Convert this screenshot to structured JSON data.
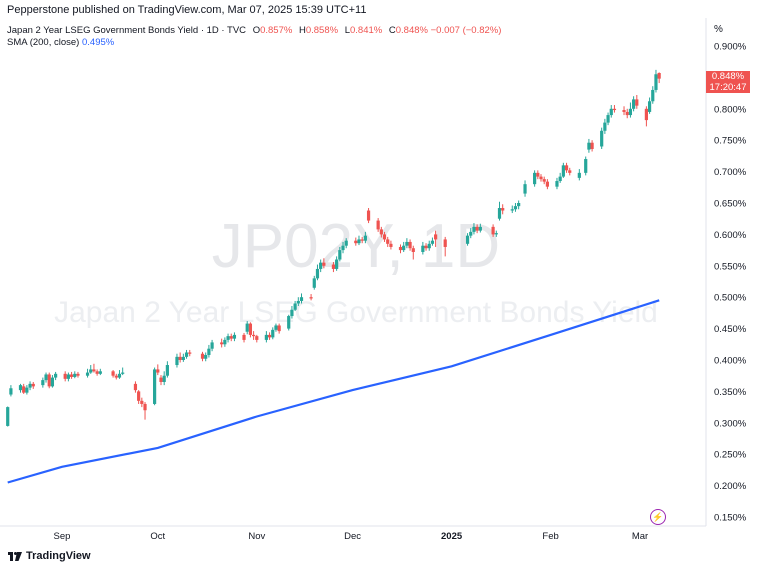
{
  "header": {
    "published": "Pepperstone published on TradingView.com, Mar 07, 2025 15:39 UTC+11",
    "symbol_line": "Japan 2 Year LSEG Government Bonds Yield · 1D · TVC",
    "open_label": "O",
    "open_value": "0.857%",
    "high_label": "H",
    "high_value": "0.858%",
    "low_label": "L",
    "low_value": "0.841%",
    "close_label": "C",
    "close_value": "0.848%",
    "change": "−0.007 (−0.82%)",
    "sma_label": "SMA (200, close)",
    "sma_value": "0.495%"
  },
  "watermark": {
    "ticker": "JP02Y, 1D",
    "name": "Japan 2 Year LSEG Government Bonds Yield"
  },
  "price_badge": {
    "price": "0.848%",
    "countdown": "17:20:47"
  },
  "footer": {
    "brand": "TradingView"
  },
  "colors": {
    "up": "#26a69a",
    "down": "#ef5350",
    "sma": "#2962ff",
    "flash": "#9c27b0"
  },
  "icons": [
    "tradingview-logo-icon",
    "flash-icon"
  ],
  "chart_data": {
    "type": "candlestick",
    "y_unit": "%",
    "y_ticks": [
      "0.900%",
      "0.850%",
      "0.800%",
      "0.750%",
      "0.700%",
      "0.650%",
      "0.600%",
      "0.550%",
      "0.500%",
      "0.450%",
      "0.400%",
      "0.350%",
      "0.300%",
      "0.250%",
      "0.200%",
      "0.150%"
    ],
    "x_ticks": [
      {
        "label": "Sep",
        "date": "2024-09-01",
        "bold": false
      },
      {
        "label": "Oct",
        "date": "2024-10-01",
        "bold": false
      },
      {
        "label": "Nov",
        "date": "2024-11-01",
        "bold": false
      },
      {
        "label": "Dec",
        "date": "2024-12-01",
        "bold": false
      },
      {
        "label": "2025",
        "date": "2025-01-01",
        "bold": true
      },
      {
        "label": "Feb",
        "date": "2025-02-01",
        "bold": false
      },
      {
        "label": "Mar",
        "date": "2025-03-01",
        "bold": false
      }
    ],
    "ylim": [
      0.13,
      0.93
    ],
    "x_range": [
      "2024-08-15",
      "2025-03-20"
    ],
    "candles": [
      {
        "x": "2024-08-15",
        "o": 0.295,
        "c": 0.325,
        "h": 0.326,
        "l": 0.294
      },
      {
        "x": "2024-08-16",
        "o": 0.345,
        "c": 0.355,
        "h": 0.36,
        "l": 0.342
      },
      {
        "x": "2024-08-19",
        "o": 0.352,
        "c": 0.36,
        "h": 0.362,
        "l": 0.348
      },
      {
        "x": "2024-08-20",
        "o": 0.358,
        "c": 0.348,
        "h": 0.362,
        "l": 0.346
      },
      {
        "x": "2024-08-21",
        "o": 0.348,
        "c": 0.356,
        "h": 0.36,
        "l": 0.345
      },
      {
        "x": "2024-08-22",
        "o": 0.356,
        "c": 0.362,
        "h": 0.366,
        "l": 0.352
      },
      {
        "x": "2024-08-23",
        "o": 0.362,
        "c": 0.358,
        "h": 0.365,
        "l": 0.354
      },
      {
        "x": "2024-08-26",
        "o": 0.36,
        "c": 0.368,
        "h": 0.372,
        "l": 0.356
      },
      {
        "x": "2024-08-27",
        "o": 0.368,
        "c": 0.377,
        "h": 0.38,
        "l": 0.364
      },
      {
        "x": "2024-08-28",
        "o": 0.377,
        "c": 0.358,
        "h": 0.38,
        "l": 0.355
      },
      {
        "x": "2024-08-29",
        "o": 0.358,
        "c": 0.372,
        "h": 0.376,
        "l": 0.356
      },
      {
        "x": "2024-08-30",
        "o": 0.372,
        "c": 0.378,
        "h": 0.381,
        "l": 0.368
      },
      {
        "x": "2024-09-02",
        "o": 0.378,
        "c": 0.37,
        "h": 0.382,
        "l": 0.366
      },
      {
        "x": "2024-09-03",
        "o": 0.37,
        "c": 0.377,
        "h": 0.38,
        "l": 0.366
      },
      {
        "x": "2024-09-04",
        "o": 0.377,
        "c": 0.373,
        "h": 0.381,
        "l": 0.37
      },
      {
        "x": "2024-09-05",
        "o": 0.373,
        "c": 0.378,
        "h": 0.382,
        "l": 0.371
      },
      {
        "x": "2024-09-06",
        "o": 0.378,
        "c": 0.375,
        "h": 0.381,
        "l": 0.372
      },
      {
        "x": "2024-09-09",
        "o": 0.375,
        "c": 0.38,
        "h": 0.386,
        "l": 0.372
      },
      {
        "x": "2024-09-10",
        "o": 0.38,
        "c": 0.385,
        "h": 0.392,
        "l": 0.378
      },
      {
        "x": "2024-09-11",
        "o": 0.385,
        "c": 0.382,
        "h": 0.394,
        "l": 0.38
      },
      {
        "x": "2024-09-12",
        "o": 0.382,
        "c": 0.378,
        "h": 0.385,
        "l": 0.375
      },
      {
        "x": "2024-09-13",
        "o": 0.378,
        "c": 0.382,
        "h": 0.386,
        "l": 0.376
      },
      {
        "x": "2024-09-17",
        "o": 0.382,
        "c": 0.375,
        "h": 0.384,
        "l": 0.372
      },
      {
        "x": "2024-09-18",
        "o": 0.375,
        "c": 0.372,
        "h": 0.378,
        "l": 0.369
      },
      {
        "x": "2024-09-19",
        "o": 0.372,
        "c": 0.378,
        "h": 0.384,
        "l": 0.37
      },
      {
        "x": "2024-09-20",
        "o": 0.378,
        "c": 0.38,
        "h": 0.388,
        "l": 0.376
      },
      {
        "x": "2024-09-24",
        "o": 0.362,
        "c": 0.352,
        "h": 0.366,
        "l": 0.348
      },
      {
        "x": "2024-09-25",
        "o": 0.35,
        "c": 0.335,
        "h": 0.352,
        "l": 0.33
      },
      {
        "x": "2024-09-26",
        "o": 0.335,
        "c": 0.33,
        "h": 0.34,
        "l": 0.325
      },
      {
        "x": "2024-09-27",
        "o": 0.33,
        "c": 0.32,
        "h": 0.333,
        "l": 0.305
      },
      {
        "x": "2024-09-30",
        "o": 0.33,
        "c": 0.385,
        "h": 0.388,
        "l": 0.328
      },
      {
        "x": "2024-10-01",
        "o": 0.385,
        "c": 0.38,
        "h": 0.393,
        "l": 0.376
      },
      {
        "x": "2024-10-02",
        "o": 0.372,
        "c": 0.365,
        "h": 0.376,
        "l": 0.36
      },
      {
        "x": "2024-10-03",
        "o": 0.365,
        "c": 0.375,
        "h": 0.382,
        "l": 0.36
      },
      {
        "x": "2024-10-04",
        "o": 0.375,
        "c": 0.392,
        "h": 0.398,
        "l": 0.372
      },
      {
        "x": "2024-10-07",
        "o": 0.392,
        "c": 0.405,
        "h": 0.41,
        "l": 0.388
      },
      {
        "x": "2024-10-08",
        "o": 0.405,
        "c": 0.4,
        "h": 0.412,
        "l": 0.396
      },
      {
        "x": "2024-10-09",
        "o": 0.4,
        "c": 0.405,
        "h": 0.41,
        "l": 0.397
      },
      {
        "x": "2024-10-10",
        "o": 0.405,
        "c": 0.412,
        "h": 0.416,
        "l": 0.402
      },
      {
        "x": "2024-10-11",
        "o": 0.412,
        "c": 0.41,
        "h": 0.416,
        "l": 0.406
      },
      {
        "x": "2024-10-15",
        "o": 0.41,
        "c": 0.402,
        "h": 0.413,
        "l": 0.398
      },
      {
        "x": "2024-10-16",
        "o": 0.402,
        "c": 0.408,
        "h": 0.412,
        "l": 0.398
      },
      {
        "x": "2024-10-17",
        "o": 0.408,
        "c": 0.418,
        "h": 0.424,
        "l": 0.404
      },
      {
        "x": "2024-10-18",
        "o": 0.418,
        "c": 0.428,
        "h": 0.432,
        "l": 0.414
      },
      {
        "x": "2024-10-21",
        "o": 0.428,
        "c": 0.425,
        "h": 0.434,
        "l": 0.42
      },
      {
        "x": "2024-10-22",
        "o": 0.425,
        "c": 0.432,
        "h": 0.436,
        "l": 0.421
      },
      {
        "x": "2024-10-23",
        "o": 0.432,
        "c": 0.438,
        "h": 0.442,
        "l": 0.428
      },
      {
        "x": "2024-10-24",
        "o": 0.438,
        "c": 0.434,
        "h": 0.442,
        "l": 0.43
      },
      {
        "x": "2024-10-25",
        "o": 0.434,
        "c": 0.44,
        "h": 0.444,
        "l": 0.43
      },
      {
        "x": "2024-10-28",
        "o": 0.44,
        "c": 0.432,
        "h": 0.443,
        "l": 0.428
      },
      {
        "x": "2024-10-29",
        "o": 0.445,
        "c": 0.458,
        "h": 0.462,
        "l": 0.441
      },
      {
        "x": "2024-10-30",
        "o": 0.458,
        "c": 0.44,
        "h": 0.46,
        "l": 0.436
      },
      {
        "x": "2024-10-31",
        "o": 0.44,
        "c": 0.438,
        "h": 0.446,
        "l": 0.432
      },
      {
        "x": "2024-11-01",
        "o": 0.438,
        "c": 0.432,
        "h": 0.44,
        "l": 0.428
      },
      {
        "x": "2024-11-04",
        "o": 0.432,
        "c": 0.44,
        "h": 0.446,
        "l": 0.428
      },
      {
        "x": "2024-11-05",
        "o": 0.44,
        "c": 0.436,
        "h": 0.444,
        "l": 0.432
      },
      {
        "x": "2024-11-06",
        "o": 0.436,
        "c": 0.448,
        "h": 0.452,
        "l": 0.433
      },
      {
        "x": "2024-11-07",
        "o": 0.448,
        "c": 0.455,
        "h": 0.458,
        "l": 0.445
      },
      {
        "x": "2024-11-08",
        "o": 0.455,
        "c": 0.446,
        "h": 0.458,
        "l": 0.442
      },
      {
        "x": "2024-11-11",
        "o": 0.45,
        "c": 0.47,
        "h": 0.472,
        "l": 0.447
      },
      {
        "x": "2024-11-12",
        "o": 0.47,
        "c": 0.48,
        "h": 0.486,
        "l": 0.466
      },
      {
        "x": "2024-11-13",
        "o": 0.48,
        "c": 0.49,
        "h": 0.494,
        "l": 0.478
      },
      {
        "x": "2024-11-14",
        "o": 0.49,
        "c": 0.494,
        "h": 0.5,
        "l": 0.486
      },
      {
        "x": "2024-11-15",
        "o": 0.494,
        "c": 0.5,
        "h": 0.506,
        "l": 0.49
      },
      {
        "x": "2024-11-18",
        "o": 0.5,
        "c": 0.498,
        "h": 0.505,
        "l": 0.495
      },
      {
        "x": "2024-11-19",
        "o": 0.515,
        "c": 0.53,
        "h": 0.534,
        "l": 0.512
      },
      {
        "x": "2024-11-20",
        "o": 0.53,
        "c": 0.545,
        "h": 0.552,
        "l": 0.527
      },
      {
        "x": "2024-11-21",
        "o": 0.545,
        "c": 0.555,
        "h": 0.56,
        "l": 0.54
      },
      {
        "x": "2024-11-22",
        "o": 0.555,
        "c": 0.55,
        "h": 0.562,
        "l": 0.546
      },
      {
        "x": "2024-11-25",
        "o": 0.552,
        "c": 0.545,
        "h": 0.556,
        "l": 0.54
      },
      {
        "x": "2024-11-26",
        "o": 0.545,
        "c": 0.56,
        "h": 0.565,
        "l": 0.542
      },
      {
        "x": "2024-11-27",
        "o": 0.56,
        "c": 0.575,
        "h": 0.58,
        "l": 0.557
      },
      {
        "x": "2024-11-28",
        "o": 0.575,
        "c": 0.582,
        "h": 0.588,
        "l": 0.57
      },
      {
        "x": "2024-11-29",
        "o": 0.582,
        "c": 0.59,
        "h": 0.594,
        "l": 0.578
      },
      {
        "x": "2024-12-02",
        "o": 0.59,
        "c": 0.586,
        "h": 0.595,
        "l": 0.582
      },
      {
        "x": "2024-12-03",
        "o": 0.586,
        "c": 0.592,
        "h": 0.598,
        "l": 0.583
      },
      {
        "x": "2024-12-04",
        "o": 0.592,
        "c": 0.59,
        "h": 0.596,
        "l": 0.586
      },
      {
        "x": "2024-12-05",
        "o": 0.59,
        "c": 0.598,
        "h": 0.604,
        "l": 0.586
      },
      {
        "x": "2024-12-06",
        "o": 0.638,
        "c": 0.622,
        "h": 0.642,
        "l": 0.618
      },
      {
        "x": "2024-12-09",
        "o": 0.622,
        "c": 0.608,
        "h": 0.626,
        "l": 0.604
      },
      {
        "x": "2024-12-10",
        "o": 0.608,
        "c": 0.6,
        "h": 0.612,
        "l": 0.595
      },
      {
        "x": "2024-12-11",
        "o": 0.6,
        "c": 0.592,
        "h": 0.604,
        "l": 0.588
      },
      {
        "x": "2024-12-12",
        "o": 0.592,
        "c": 0.585,
        "h": 0.596,
        "l": 0.58
      },
      {
        "x": "2024-12-13",
        "o": 0.585,
        "c": 0.58,
        "h": 0.59,
        "l": 0.576
      },
      {
        "x": "2024-12-16",
        "o": 0.58,
        "c": 0.575,
        "h": 0.584,
        "l": 0.57
      },
      {
        "x": "2024-12-17",
        "o": 0.575,
        "c": 0.582,
        "h": 0.588,
        "l": 0.572
      },
      {
        "x": "2024-12-18",
        "o": 0.582,
        "c": 0.588,
        "h": 0.594,
        "l": 0.578
      },
      {
        "x": "2024-12-19",
        "o": 0.588,
        "c": 0.578,
        "h": 0.592,
        "l": 0.574
      },
      {
        "x": "2024-12-20",
        "o": 0.578,
        "c": 0.572,
        "h": 0.582,
        "l": 0.56
      },
      {
        "x": "2024-12-23",
        "o": 0.572,
        "c": 0.582,
        "h": 0.588,
        "l": 0.568
      },
      {
        "x": "2024-12-24",
        "o": 0.582,
        "c": 0.578,
        "h": 0.586,
        "l": 0.574
      },
      {
        "x": "2024-12-25",
        "o": 0.578,
        "c": 0.585,
        "h": 0.59,
        "l": 0.574
      },
      {
        "x": "2024-12-26",
        "o": 0.585,
        "c": 0.59,
        "h": 0.595,
        "l": 0.582
      },
      {
        "x": "2024-12-27",
        "o": 0.6,
        "c": 0.592,
        "h": 0.606,
        "l": 0.58
      },
      {
        "x": "2024-12-30",
        "o": 0.592,
        "c": 0.58,
        "h": 0.596,
        "l": 0.565
      },
      {
        "x": "2025-01-06",
        "o": 0.585,
        "c": 0.598,
        "h": 0.602,
        "l": 0.582
      },
      {
        "x": "2025-01-07",
        "o": 0.598,
        "c": 0.604,
        "h": 0.61,
        "l": 0.594
      },
      {
        "x": "2025-01-08",
        "o": 0.604,
        "c": 0.612,
        "h": 0.618,
        "l": 0.6
      },
      {
        "x": "2025-01-09",
        "o": 0.612,
        "c": 0.606,
        "h": 0.616,
        "l": 0.602
      },
      {
        "x": "2025-01-10",
        "o": 0.606,
        "c": 0.612,
        "h": 0.617,
        "l": 0.603
      },
      {
        "x": "2025-01-14",
        "o": 0.612,
        "c": 0.6,
        "h": 0.616,
        "l": 0.596
      },
      {
        "x": "2025-01-15",
        "o": 0.6,
        "c": 0.602,
        "h": 0.606,
        "l": 0.596
      },
      {
        "x": "2025-01-16",
        "o": 0.625,
        "c": 0.642,
        "h": 0.652,
        "l": 0.622
      },
      {
        "x": "2025-01-17",
        "o": 0.642,
        "c": 0.638,
        "h": 0.648,
        "l": 0.632
      },
      {
        "x": "2025-01-20",
        "o": 0.638,
        "c": 0.64,
        "h": 0.646,
        "l": 0.634
      },
      {
        "x": "2025-01-21",
        "o": 0.64,
        "c": 0.645,
        "h": 0.65,
        "l": 0.636
      },
      {
        "x": "2025-01-22",
        "o": 0.645,
        "c": 0.65,
        "h": 0.654,
        "l": 0.64
      },
      {
        "x": "2025-01-24",
        "o": 0.665,
        "c": 0.68,
        "h": 0.686,
        "l": 0.66
      },
      {
        "x": "2025-01-27",
        "o": 0.68,
        "c": 0.698,
        "h": 0.702,
        "l": 0.676
      },
      {
        "x": "2025-01-28",
        "o": 0.698,
        "c": 0.692,
        "h": 0.702,
        "l": 0.688
      },
      {
        "x": "2025-01-29",
        "o": 0.692,
        "c": 0.688,
        "h": 0.696,
        "l": 0.684
      },
      {
        "x": "2025-01-30",
        "o": 0.688,
        "c": 0.684,
        "h": 0.692,
        "l": 0.68
      },
      {
        "x": "2025-01-31",
        "o": 0.684,
        "c": 0.676,
        "h": 0.688,
        "l": 0.672
      },
      {
        "x": "2025-02-03",
        "o": 0.676,
        "c": 0.685,
        "h": 0.69,
        "l": 0.672
      },
      {
        "x": "2025-02-04",
        "o": 0.685,
        "c": 0.692,
        "h": 0.698,
        "l": 0.682
      },
      {
        "x": "2025-02-05",
        "o": 0.692,
        "c": 0.71,
        "h": 0.714,
        "l": 0.69
      },
      {
        "x": "2025-02-06",
        "o": 0.71,
        "c": 0.702,
        "h": 0.714,
        "l": 0.698
      },
      {
        "x": "2025-02-07",
        "o": 0.702,
        "c": 0.698,
        "h": 0.706,
        "l": 0.694
      },
      {
        "x": "2025-02-10",
        "o": 0.69,
        "c": 0.698,
        "h": 0.704,
        "l": 0.686
      },
      {
        "x": "2025-02-12",
        "o": 0.698,
        "c": 0.72,
        "h": 0.724,
        "l": 0.694
      },
      {
        "x": "2025-02-13",
        "o": 0.735,
        "c": 0.746,
        "h": 0.752,
        "l": 0.73
      },
      {
        "x": "2025-02-14",
        "o": 0.746,
        "c": 0.736,
        "h": 0.75,
        "l": 0.732
      },
      {
        "x": "2025-02-17",
        "o": 0.74,
        "c": 0.765,
        "h": 0.77,
        "l": 0.736
      },
      {
        "x": "2025-02-18",
        "o": 0.765,
        "c": 0.778,
        "h": 0.784,
        "l": 0.76
      },
      {
        "x": "2025-02-19",
        "o": 0.778,
        "c": 0.79,
        "h": 0.794,
        "l": 0.774
      },
      {
        "x": "2025-02-20",
        "o": 0.79,
        "c": 0.8,
        "h": 0.806,
        "l": 0.786
      },
      {
        "x": "2025-02-21",
        "o": 0.8,
        "c": 0.798,
        "h": 0.806,
        "l": 0.794
      },
      {
        "x": "2025-02-24",
        "o": 0.798,
        "c": 0.795,
        "h": 0.804,
        "l": 0.79
      },
      {
        "x": "2025-02-25",
        "o": 0.795,
        "c": 0.79,
        "h": 0.8,
        "l": 0.785
      },
      {
        "x": "2025-02-26",
        "o": 0.79,
        "c": 0.8,
        "h": 0.81,
        "l": 0.786
      },
      {
        "x": "2025-02-27",
        "o": 0.8,
        "c": 0.815,
        "h": 0.82,
        "l": 0.796
      },
      {
        "x": "2025-02-28",
        "o": 0.815,
        "c": 0.805,
        "h": 0.822,
        "l": 0.8
      },
      {
        "x": "2025-03-03",
        "o": 0.8,
        "c": 0.782,
        "h": 0.804,
        "l": 0.772
      },
      {
        "x": "2025-03-04",
        "o": 0.795,
        "c": 0.812,
        "h": 0.818,
        "l": 0.792
      },
      {
        "x": "2025-03-05",
        "o": 0.812,
        "c": 0.83,
        "h": 0.836,
        "l": 0.808
      },
      {
        "x": "2025-03-06",
        "o": 0.83,
        "c": 0.855,
        "h": 0.862,
        "l": 0.826
      },
      {
        "x": "2025-03-07",
        "o": 0.857,
        "c": 0.848,
        "h": 0.858,
        "l": 0.841
      }
    ],
    "series": [
      {
        "name": "SMA (200, close)",
        "color": "#2962ff",
        "points": [
          {
            "x": "2024-08-15",
            "y": 0.205
          },
          {
            "x": "2024-09-01",
            "y": 0.23
          },
          {
            "x": "2024-10-01",
            "y": 0.26
          },
          {
            "x": "2024-11-01",
            "y": 0.31
          },
          {
            "x": "2024-12-01",
            "y": 0.352
          },
          {
            "x": "2025-01-01",
            "y": 0.39
          },
          {
            "x": "2025-02-01",
            "y": 0.44
          },
          {
            "x": "2025-03-07",
            "y": 0.495
          }
        ]
      }
    ]
  }
}
